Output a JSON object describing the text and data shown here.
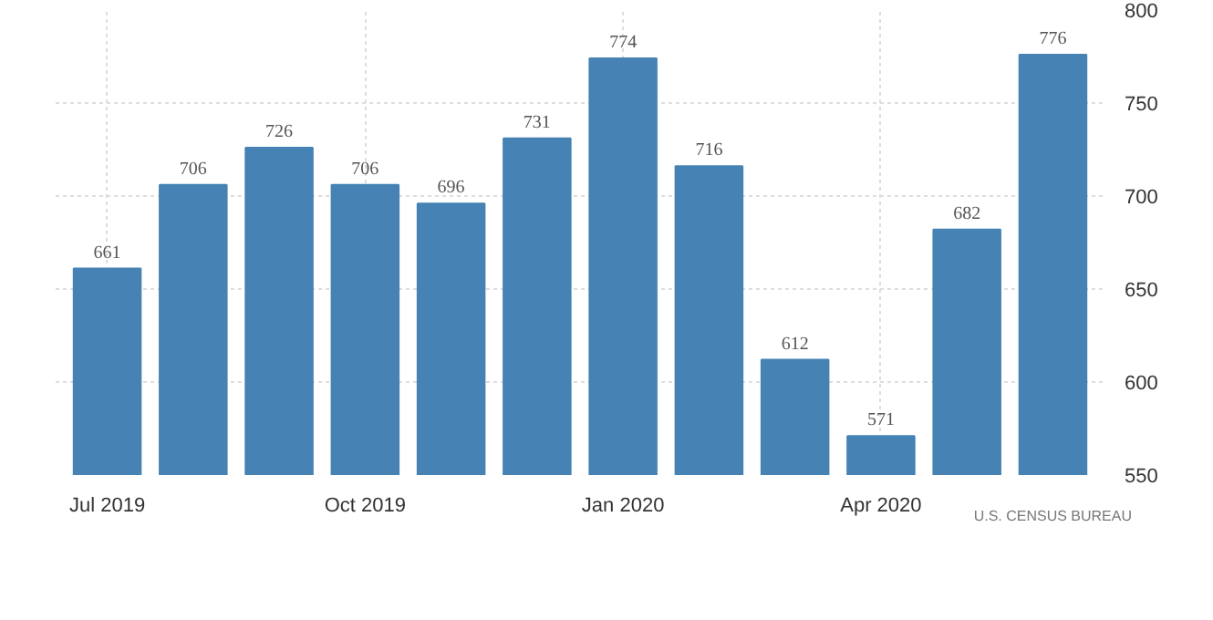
{
  "chart_data": {
    "type": "bar",
    "categories": [
      "Jul 2019",
      null,
      null,
      "Oct 2019",
      null,
      null,
      "Jan 2020",
      null,
      null,
      "Apr 2020",
      null,
      null
    ],
    "values": [
      661,
      706,
      726,
      706,
      696,
      731,
      774,
      716,
      612,
      571,
      682,
      776
    ],
    "color": "#4682b4",
    "data_labels": true,
    "ylim": [
      550,
      800
    ],
    "yticks": [
      550,
      600,
      650,
      700,
      750,
      800
    ],
    "grid": true,
    "annotations": [
      "U.S. CENSUS BUREAU"
    ]
  }
}
